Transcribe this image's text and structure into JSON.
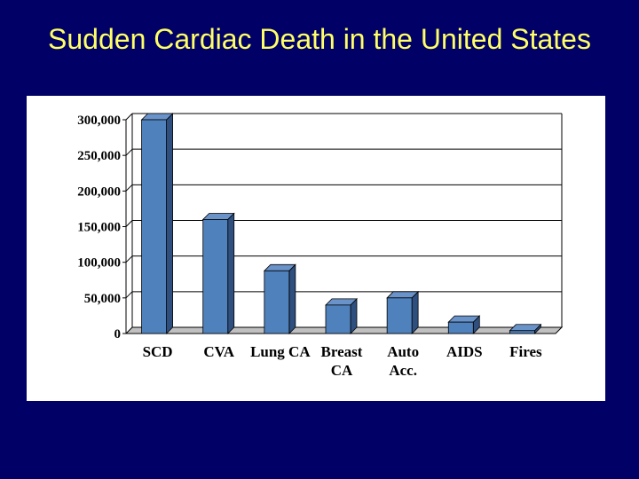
{
  "slide": {
    "title": "Sudden Cardiac Death in the United States"
  },
  "chart_data": {
    "type": "bar",
    "title": "",
    "xlabel": "",
    "ylabel": "",
    "categories": [
      [
        "SCD"
      ],
      [
        "CVA"
      ],
      [
        "Lung CA"
      ],
      [
        "Breast",
        "CA"
      ],
      [
        "Auto",
        "Acc."
      ],
      [
        "AIDS"
      ],
      [
        "Fires"
      ]
    ],
    "values": [
      300000,
      160000,
      88000,
      40000,
      50000,
      16000,
      4000
    ],
    "ylim": [
      0,
      300000
    ],
    "yticks": [
      0,
      50000,
      100000,
      150000,
      200000,
      250000,
      300000
    ],
    "ytick_labels": [
      "0",
      "50,000",
      "100,000",
      "150,000",
      "200,000",
      "250,000",
      "300,000"
    ],
    "grid": "horizontal",
    "legend": "none",
    "style": "3d",
    "colors": {
      "bar_front": "#4f81bd",
      "bar_side": "#2f4f7f",
      "bar_top": "#6a93c9",
      "grid": "#000000",
      "floor": "#c0c0c0"
    }
  }
}
